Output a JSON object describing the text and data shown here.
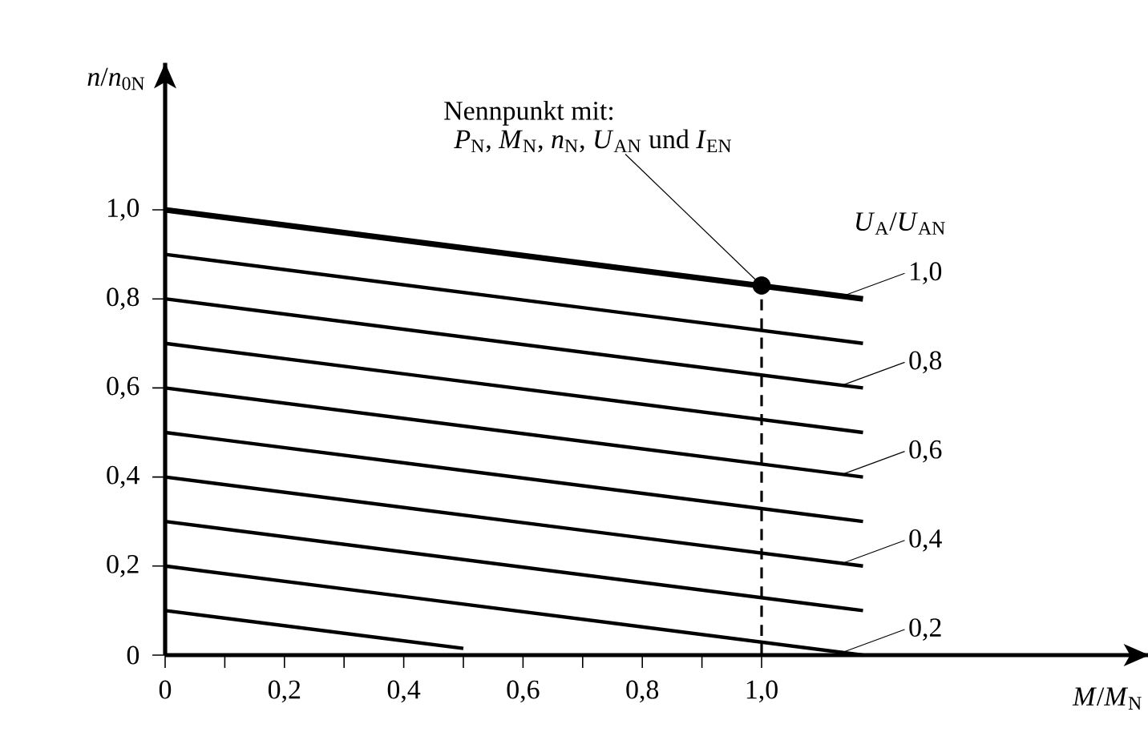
{
  "chart_data": {
    "type": "line",
    "xlabel": "*M*/*M*$_{N}$",
    "ylabel": "*n*/*n*$_{0N}$",
    "legend_title": "*U*$_{A}$/*U*$_{AN}$",
    "annotations": [
      {
        "text": "Nennpunkt mit:",
        "x": 1.0,
        "y": 0.83
      },
      "*P*$_{N}$, *M*$_{N}$, *n*$_{N}$, *U*$_{AN}$ und *I*$_{EN}$"
    ],
    "xlim": [
      0,
      1.65
    ],
    "ylim": [
      0,
      1.33
    ],
    "legend": "right",
    "xticks": [
      {
        "value": 0,
        "label": "0"
      },
      {
        "value": 0.1,
        "label": null
      },
      {
        "value": 0.2,
        "label": "0,2"
      },
      {
        "value": 0.3,
        "label": null
      },
      {
        "value": 0.4,
        "label": "0,4"
      },
      {
        "value": 0.5,
        "label": null
      },
      {
        "value": 0.6,
        "label": "0,6"
      },
      {
        "value": 0.7,
        "label": null
      },
      {
        "value": 0.8,
        "label": "0,8"
      },
      {
        "value": 0.9,
        "label": null
      },
      {
        "value": 1.0,
        "label": "1,0"
      }
    ],
    "yticks": [
      {
        "value": 0,
        "label": "0"
      },
      {
        "value": 0.2,
        "label": "0,2"
      },
      {
        "value": 0.4,
        "label": "0,4"
      },
      {
        "value": 0.6,
        "label": "0,6"
      },
      {
        "value": 0.8,
        "label": "0,8"
      },
      {
        "value": 1.0,
        "label": "1,0"
      }
    ],
    "ref_lines": [
      {
        "axis": "x",
        "value": 1.0,
        "line_style": "dashed"
      }
    ],
    "series": [
      {
        "name": "1,0",
        "color": "#000000",
        "x": [
          0,
          1.17
        ],
        "values": [
          1.0,
          0.8
        ]
      },
      {
        "color": "#000000",
        "x": [
          0,
          1.17
        ],
        "values": [
          0.9,
          0.7
        ]
      },
      {
        "name": "0,8",
        "color": "#000000",
        "x": [
          0,
          1.17
        ],
        "values": [
          0.8,
          0.6
        ]
      },
      {
        "color": "#000000",
        "x": [
          0,
          1.17
        ],
        "values": [
          0.7,
          0.5
        ]
      },
      {
        "name": "0,6",
        "color": "#000000",
        "x": [
          0,
          1.17
        ],
        "values": [
          0.6,
          0.4
        ]
      },
      {
        "color": "#000000",
        "x": [
          0,
          1.17
        ],
        "values": [
          0.5,
          0.3
        ]
      },
      {
        "name": "0,4",
        "color": "#000000",
        "x": [
          0,
          1.17
        ],
        "values": [
          0.4,
          0.2
        ]
      },
      {
        "color": "#000000",
        "x": [
          0,
          1.17
        ],
        "values": [
          0.3,
          0.1
        ]
      },
      {
        "name": "0,2",
        "color": "#000000",
        "x": [
          0,
          1.17
        ],
        "values": [
          0.2,
          0.0
        ]
      },
      {
        "color": "#000000",
        "x": [
          0,
          0.5
        ],
        "values": [
          0.1,
          0.015
        ]
      },
      {
        "type": "scatter",
        "color": "#000000",
        "x": [
          1.0
        ],
        "values": [
          0.83
        ]
      }
    ]
  }
}
